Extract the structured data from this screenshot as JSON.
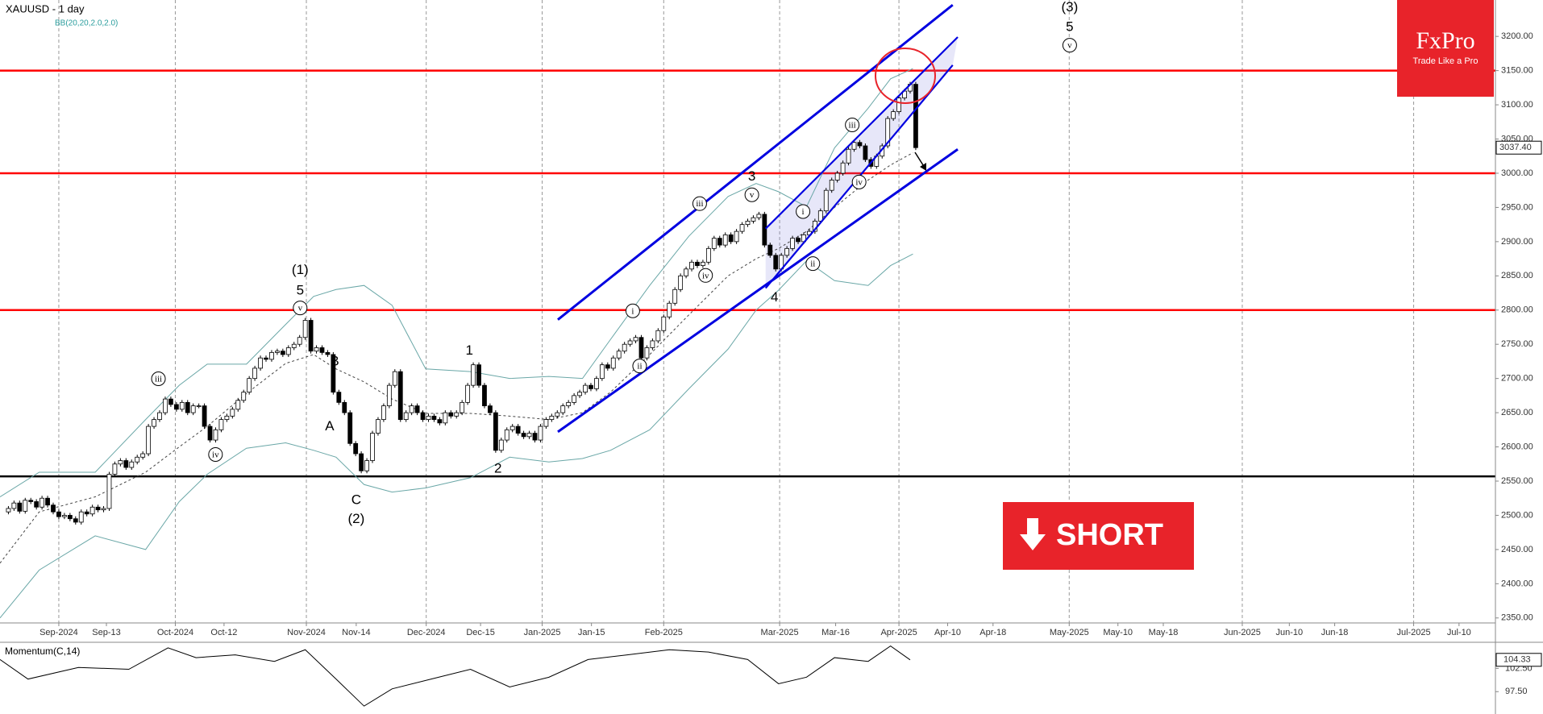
{
  "chart_data": {
    "type": "candlestick",
    "title": "XAUUSD - 1 day",
    "indicator_label": "BB(20,20,2.0,2.0)",
    "xlim": [
      0,
      267
    ],
    "xticks": [
      {
        "value": 10.5,
        "label": "Sep-2024"
      },
      {
        "value": 19,
        "label": "Sep-13"
      },
      {
        "value": 31.3,
        "label": "Oct-2024"
      },
      {
        "value": 40,
        "label": "Oct-12"
      },
      {
        "value": 54.7,
        "label": "Nov-2024"
      },
      {
        "value": 63.6,
        "label": "Nov-14"
      },
      {
        "value": 76.1,
        "label": "Dec-2024"
      },
      {
        "value": 85.8,
        "label": "Dec-15"
      },
      {
        "value": 96.8,
        "label": "Jan-2025"
      },
      {
        "value": 105.6,
        "label": "Jan-15"
      },
      {
        "value": 118.5,
        "label": "Feb-2025"
      },
      {
        "value": 139.2,
        "label": "Mar-2025"
      },
      {
        "value": 149.2,
        "label": "Mar-16"
      },
      {
        "value": 160.5,
        "label": "Apr-2025"
      },
      {
        "value": 169.2,
        "label": "Apr-10"
      },
      {
        "value": 177.3,
        "label": "Apr-18"
      },
      {
        "value": 190.9,
        "label": "May-2025"
      },
      {
        "value": 199.6,
        "label": "May-10"
      },
      {
        "value": 207.7,
        "label": "May-18"
      },
      {
        "value": 221.8,
        "label": "Jun-2025"
      },
      {
        "value": 230.2,
        "label": "Jun-10"
      },
      {
        "value": 238.3,
        "label": "Jun-18"
      },
      {
        "value": 252.4,
        "label": "Jul-2025"
      },
      {
        "value": 260.5,
        "label": "Jul-10"
      }
    ],
    "ylim": [
      2342.7,
      3253.2
    ],
    "yticks": [
      {
        "value": 2350,
        "label": "2350.00"
      },
      {
        "value": 2400,
        "label": "2400.00"
      },
      {
        "value": 2450,
        "label": "2450.00"
      },
      {
        "value": 2500,
        "label": "2500.00"
      },
      {
        "value": 2550,
        "label": "2550.00"
      },
      {
        "value": 2600,
        "label": "2600.00"
      },
      {
        "value": 2650,
        "label": "2650.00"
      },
      {
        "value": 2700,
        "label": "2700.00"
      },
      {
        "value": 2750,
        "label": "2750.00"
      },
      {
        "value": 2800,
        "label": "2800.00"
      },
      {
        "value": 2850,
        "label": "2850.00"
      },
      {
        "value": 2900,
        "label": "2900.00"
      },
      {
        "value": 2950,
        "label": "2950.00"
      },
      {
        "value": 3000,
        "label": "3000.00"
      },
      {
        "value": 3050,
        "label": "3050.00"
      },
      {
        "value": 3100,
        "label": "3100.00"
      },
      {
        "value": 3150,
        "label": "3150.00"
      },
      {
        "value": 3200,
        "label": "3200.00"
      }
    ],
    "close": [
      2505,
      2510,
      2518,
      2506,
      2522,
      2520,
      2512,
      2525,
      2515,
      2505,
      2498,
      2500,
      2495,
      2490,
      2505,
      2502,
      2512,
      2508,
      2510,
      2560,
      2575,
      2580,
      2570,
      2578,
      2585,
      2590,
      2630,
      2640,
      2650,
      2670,
      2662,
      2655,
      2665,
      2650,
      2660,
      2660,
      2630,
      2610,
      2625,
      2640,
      2645,
      2655,
      2668,
      2680,
      2700,
      2715,
      2730,
      2728,
      2738,
      2740,
      2735,
      2745,
      2750,
      2760,
      2785,
      2740,
      2745,
      2738,
      2735,
      2680,
      2665,
      2650,
      2605,
      2590,
      2565,
      2580,
      2620,
      2640,
      2660,
      2690,
      2710,
      2640,
      2650,
      2660,
      2650,
      2640,
      2645,
      2640,
      2635,
      2650,
      2645,
      2650,
      2665,
      2690,
      2720,
      2690,
      2660,
      2650,
      2595,
      2610,
      2625,
      2630,
      2620,
      2615,
      2620,
      2610,
      2630,
      2640,
      2645,
      2650,
      2660,
      2665,
      2675,
      2680,
      2690,
      2685,
      2700,
      2720,
      2715,
      2730,
      2740,
      2750,
      2755,
      2760,
      2730,
      2745,
      2755,
      2770,
      2790,
      2810,
      2830,
      2850,
      2860,
      2870,
      2865,
      2870,
      2890,
      2905,
      2895,
      2910,
      2900,
      2915,
      2925,
      2930,
      2935,
      2940,
      2895,
      2880,
      2860,
      2880,
      2890,
      2905,
      2900,
      2910,
      2915,
      2930,
      2945,
      2975,
      2990,
      3000,
      3015,
      3035,
      3045,
      3040,
      3020,
      3010,
      3025,
      3040,
      3080,
      3090,
      3110,
      3120,
      3130,
      3037.4
    ],
    "bands": {
      "x": [
        0,
        7,
        17,
        26,
        32,
        37,
        44,
        51,
        56,
        60,
        65,
        70,
        76,
        84,
        91,
        98,
        104,
        109,
        116,
        123,
        130,
        135,
        139,
        144,
        149,
        155,
        159,
        163
      ],
      "upper": [
        2527,
        2563,
        2563,
        2640,
        2690,
        2721,
        2721,
        2779,
        2820,
        2830,
        2836,
        2807,
        2714,
        2710,
        2700,
        2703,
        2700,
        2757,
        2836,
        2908,
        2966,
        2985,
        2973,
        2951,
        3037,
        3095,
        3138,
        3153
      ],
      "middle": [
        2430,
        2505,
        2527,
        2563,
        2600,
        2630,
        2678,
        2722,
        2735,
        2714,
        2695,
        2670,
        2649,
        2649,
        2645,
        2640,
        2650,
        2680,
        2735,
        2793,
        2850,
        2875,
        2890,
        2915,
        2950,
        2990,
        3012,
        3030
      ],
      "lower": [
        2350,
        2420,
        2470,
        2450,
        2520,
        2560,
        2598,
        2606,
        2595,
        2585,
        2545,
        2534,
        2540,
        2555,
        2585,
        2578,
        2583,
        2595,
        2625,
        2685,
        2743,
        2800,
        2829,
        2872,
        2843,
        2836,
        2865,
        2882
      ]
    },
    "levels": [
      {
        "value": 3150,
        "color": "#ff0000"
      },
      {
        "value": 3000,
        "color": "#ff0000"
      },
      {
        "value": 2800,
        "color": "#ff0000"
      },
      {
        "value": 2557,
        "color": "#000000"
      }
    ],
    "channels": [
      {
        "x": [
          99.6,
          170.1
        ],
        "y": [
          2786,
          3246
        ]
      },
      {
        "x": [
          99.6,
          171
        ],
        "y": [
          2622,
          3035
        ]
      },
      {
        "x": [
          136.7,
          171
        ],
        "y": [
          2919,
          3199
        ]
      },
      {
        "x": [
          136.7,
          170.1
        ],
        "y": [
          2832,
          3158
        ]
      }
    ],
    "channel_color": "#0000e0",
    "last_price": 3037.4,
    "last_price_label": "3037.40",
    "wave_labels": [
      "(1)",
      "5",
      "v",
      "iii",
      "iv",
      "B",
      "A",
      "C",
      "(2)",
      "1",
      "2",
      "i",
      "ii",
      "iii",
      "iv",
      "v",
      "3",
      "4",
      "i",
      "ii",
      "iii",
      "iv",
      "(3)",
      "5",
      "v"
    ],
    "momentum": {
      "title": "Momentum(C,14)",
      "x": [
        0,
        5,
        14,
        23,
        30,
        35,
        42,
        49,
        54.5,
        60,
        65,
        70,
        77,
        84,
        91,
        98,
        105,
        112,
        119.5,
        126.5,
        133.5,
        139,
        144,
        149,
        155,
        159,
        162.5
      ],
      "values": [
        104.4,
        100.2,
        102.7,
        102.3,
        106.9,
        104.8,
        105.4,
        104,
        106.5,
        100.2,
        94.4,
        98.1,
        100.2,
        102.3,
        98.5,
        100.6,
        104.4,
        105.4,
        106.5,
        106,
        104.4,
        99.2,
        100.6,
        104.8,
        104,
        107.3,
        104.33
      ],
      "ylim": [
        92.7,
        108.1
      ],
      "yticks": [
        {
          "value": 102.5,
          "label": "102.50"
        },
        {
          "value": 97.5,
          "label": "97.50"
        }
      ],
      "last": 104.33
    },
    "logo": {
      "brand": "FxPro",
      "tagline": "Trade Like a Pro"
    },
    "signal": "SHORT"
  }
}
